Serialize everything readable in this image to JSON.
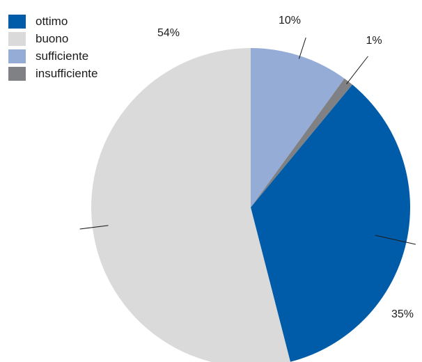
{
  "chart_data": {
    "type": "pie",
    "slices": [
      {
        "name": "ottimo",
        "value": 35,
        "label": "35%",
        "color": "#005ca9"
      },
      {
        "name": "buono",
        "value": 54,
        "label": "54%",
        "color": "#dadadb"
      },
      {
        "name": "sufficiente",
        "value": 10,
        "label": "10%",
        "color": "#95add6"
      },
      {
        "name": "insufficiente",
        "value": 1,
        "label": "1%",
        "color": "#808184"
      }
    ],
    "legend_position": "top-left"
  }
}
